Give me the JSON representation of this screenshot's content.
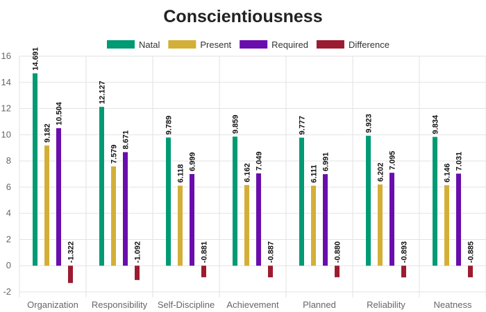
{
  "chart_data": {
    "type": "bar",
    "title": "Conscientiousness",
    "xlabel": "",
    "ylabel": "",
    "ylim": [
      -2,
      16
    ],
    "yticks": [
      -2,
      0,
      2,
      4,
      6,
      8,
      10,
      12,
      14,
      16
    ],
    "grid": true,
    "legend_position": "top",
    "categories": [
      "Organization",
      "Responsibility",
      "Self-Discipline",
      "Achievement",
      "Planned",
      "Reliability",
      "Neatness"
    ],
    "series": [
      {
        "name": "Natal",
        "color": "#009a74",
        "values": [
          14.691,
          12.127,
          9.789,
          9.859,
          9.777,
          9.923,
          9.834
        ]
      },
      {
        "name": "Present",
        "color": "#d4af37",
        "values": [
          9.182,
          7.579,
          6.118,
          6.162,
          6.111,
          6.202,
          6.146
        ]
      },
      {
        "name": "Required",
        "color": "#6a0dad",
        "values": [
          10.504,
          8.671,
          6.999,
          7.049,
          6.991,
          7.095,
          7.031
        ]
      },
      {
        "name": "Difference",
        "color": "#9b1b30",
        "values": [
          -1.322,
          -1.092,
          -0.881,
          -0.887,
          -0.88,
          -0.893,
          -0.885
        ]
      }
    ]
  }
}
